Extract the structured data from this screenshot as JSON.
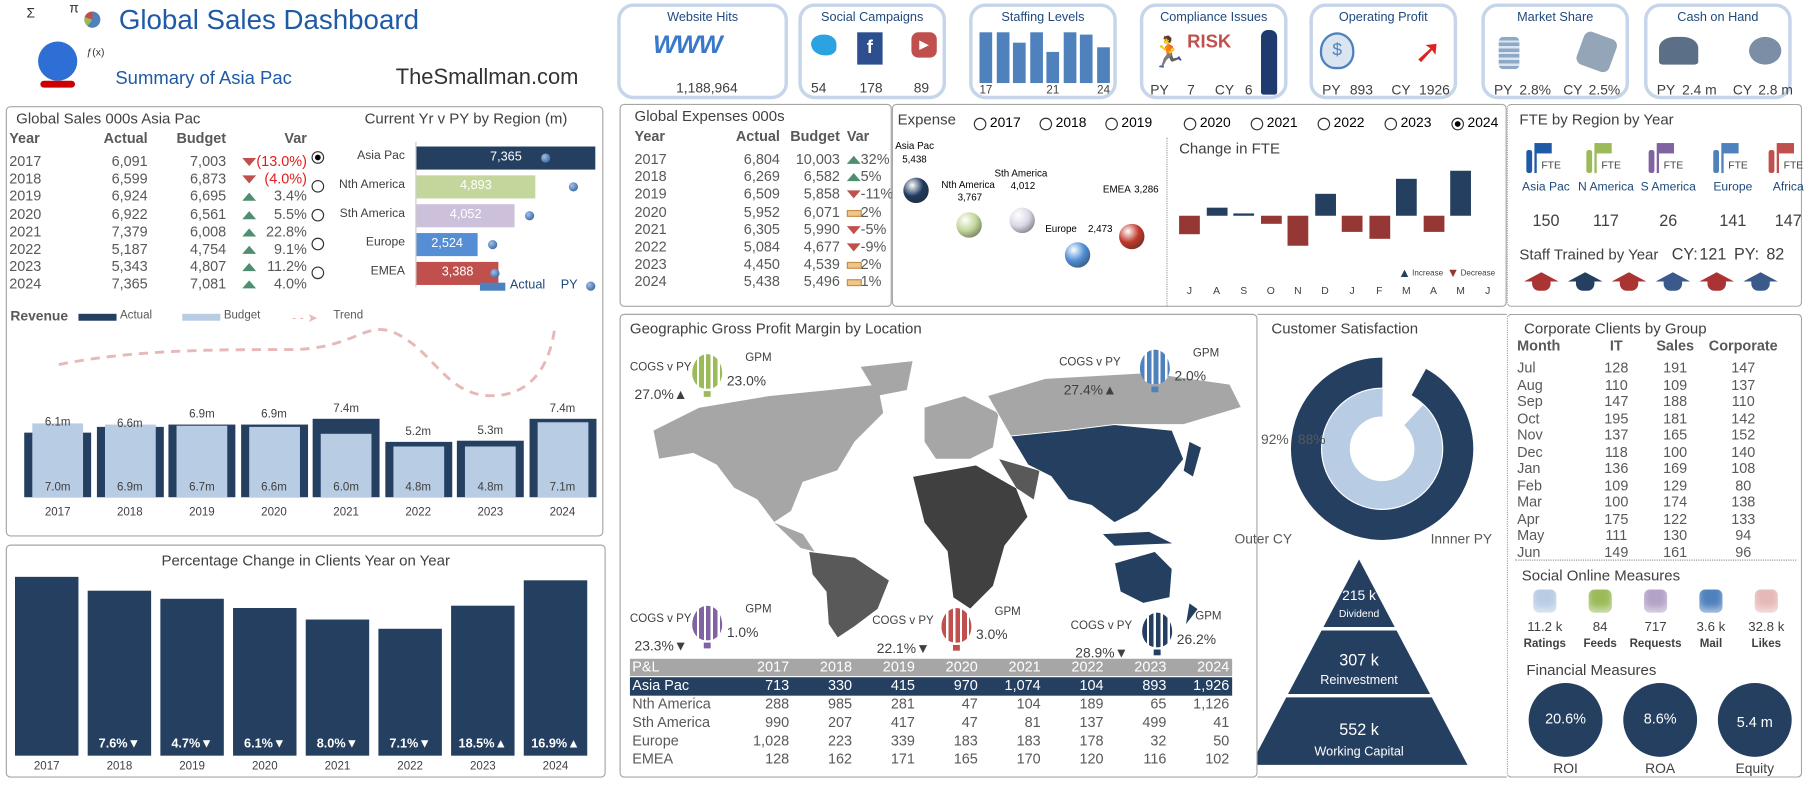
{
  "header": {
    "title": "Global Sales Dashboard",
    "subtitle": "Summary of Asia Pac",
    "brand": "TheSmallman.com",
    "logo_symbols": [
      "Σ",
      "π",
      "ƒ(x)"
    ]
  },
  "colors": {
    "navy": "#243f60",
    "light_blue": "#b8cce4",
    "green": "#9bbb59",
    "red": "#c0504d",
    "purple": "#8064a2",
    "blue": "#4f81bd",
    "title_blue": "#1f5aa6"
  },
  "kpis": {
    "website_hits": {
      "title": "Website Hits",
      "icon": "www-icon",
      "value": "1,188,964"
    },
    "social_campaigns": {
      "title": "Social Campaigns",
      "items": [
        {
          "icon": "twitter-icon",
          "value": "54"
        },
        {
          "icon": "facebook-icon",
          "value": "178"
        },
        {
          "icon": "youtube-icon",
          "value": "89"
        }
      ]
    },
    "staffing_levels": {
      "title": "Staffing Levels",
      "bars": [
        24,
        24,
        19,
        24,
        15,
        24,
        23,
        17
      ],
      "labels": [
        "17",
        "21",
        "24"
      ]
    },
    "compliance_issues": {
      "title": "Compliance Issues",
      "risk_logo": "RISK",
      "py_label": "PY",
      "py": "7",
      "cy_label": "CY",
      "cy": "6"
    },
    "operating_profit": {
      "title": "Operating Profit",
      "py_label": "PY",
      "py": "893",
      "cy_label": "CY",
      "cy": "1926"
    },
    "market_share": {
      "title": "Market Share",
      "py_label": "PY",
      "py": "2.8%",
      "cy_label": "CY",
      "cy": "2.5%"
    },
    "cash_on_hand": {
      "title": "Cash on Hand",
      "py_label": "PY",
      "py": "2.4 m",
      "cy_label": "CY",
      "cy": "2.8 m"
    }
  },
  "global_sales": {
    "title": "Global Sales 000s Asia Pac",
    "columns": [
      "Year",
      "Actual",
      "Budget",
      "Var"
    ],
    "rows": [
      [
        "2017",
        "6,091",
        "7,003",
        "down",
        "(13.0%)"
      ],
      [
        "2018",
        "6,599",
        "6,873",
        "down",
        "(4.0%)"
      ],
      [
        "2019",
        "6,924",
        "6,695",
        "up",
        "3.4%"
      ],
      [
        "2020",
        "6,922",
        "6,561",
        "up",
        "5.5%"
      ],
      [
        "2021",
        "7,379",
        "6,008",
        "up",
        "22.8%"
      ],
      [
        "2022",
        "5,187",
        "4,754",
        "up",
        "9.1%"
      ],
      [
        "2023",
        "5,343",
        "4,807",
        "up",
        "11.2%"
      ],
      [
        "2024",
        "7,365",
        "7,081",
        "up",
        "4.0%"
      ]
    ]
  },
  "region_chart": {
    "title": "Current Yr v PY by Region (m)",
    "type": "bar",
    "selected": "Asia Pac",
    "categories": [
      "Asia Pac",
      "Nth America",
      "Sth America",
      "Europe",
      "EMEA"
    ],
    "actual": [
      7365,
      4893,
      4052,
      2524,
      3388
    ],
    "actual_labels": [
      "7,365",
      "4,893",
      "4,052",
      "2,524",
      "3,388"
    ],
    "py": [
      5300,
      6450,
      4650,
      3150,
      3250
    ],
    "bar_colors": [
      "#243f60",
      "#c3d69b",
      "#ccc0da",
      "#558ed5",
      "#c0504d"
    ],
    "legend": {
      "actual": "Actual",
      "py": "PY"
    }
  },
  "revenue_chart": {
    "type": "bar",
    "title": "Revenue",
    "legend": {
      "actual": "Actual",
      "budget": "Budget",
      "trend": "Trend"
    },
    "categories": [
      "2017",
      "2018",
      "2019",
      "2020",
      "2021",
      "2022",
      "2023",
      "2024"
    ],
    "actual": [
      6.1,
      6.6,
      6.9,
      6.9,
      7.4,
      5.2,
      5.3,
      7.4
    ],
    "budget": [
      7.0,
      6.9,
      6.7,
      6.6,
      6.0,
      4.8,
      4.8,
      7.1
    ],
    "actual_labels": [
      "6.1m",
      "6.6m",
      "6.9m",
      "6.9m",
      "7.4m",
      "5.2m",
      "5.3m",
      "7.4m"
    ],
    "budget_labels": [
      "7.0m",
      "6.9m",
      "6.7m",
      "6.6m",
      "6.0m",
      "4.8m",
      "4.8m",
      "7.1m"
    ]
  },
  "clients_chart": {
    "type": "bar",
    "title": "Percentage Change in Clients Year on Year",
    "categories": [
      "2017",
      "2018",
      "2019",
      "2020",
      "2021",
      "2022",
      "2023",
      "2024"
    ],
    "change_pct": [
      null,
      -7.6,
      -4.7,
      -6.1,
      -8.0,
      -7.1,
      18.5,
      16.9
    ],
    "labels": [
      "",
      "7.6%▼",
      "4.7%▼",
      "6.1%▼",
      "8.0%▼",
      "7.1%▼",
      "18.5%▲",
      "16.9%▲"
    ]
  },
  "global_expenses": {
    "title": "Global Expenses 000s",
    "columns": [
      "Year",
      "Actual",
      "Budget",
      "Var"
    ],
    "rows": [
      [
        "2017",
        "6,804",
        "10,003",
        "up",
        "32%"
      ],
      [
        "2018",
        "6,269",
        "6,582",
        "up",
        "5%"
      ],
      [
        "2019",
        "6,509",
        "5,858",
        "down",
        "-11%"
      ],
      [
        "2020",
        "5,952",
        "6,071",
        "flat",
        "2%"
      ],
      [
        "2021",
        "6,305",
        "5,990",
        "down",
        "-5%"
      ],
      [
        "2022",
        "5,084",
        "4,677",
        "down",
        "-9%"
      ],
      [
        "2023",
        "4,450",
        "4,539",
        "flat",
        "2%"
      ],
      [
        "2024",
        "5,438",
        "5,496",
        "flat",
        "1%"
      ]
    ]
  },
  "expense": {
    "title": "Expense",
    "years": [
      "2017",
      "2018",
      "2019",
      "2020",
      "2021",
      "2022",
      "2023",
      "2024"
    ],
    "selected": "2024",
    "bubbles": [
      {
        "region": "Asia Pac",
        "value": "5,438",
        "color": "#1f3a5f"
      },
      {
        "region": "Nth America",
        "value": "3,767",
        "color": "#c3d69b"
      },
      {
        "region": "Sth America",
        "value": "4,012",
        "color": "#d9d9e6"
      },
      {
        "region": "Europe",
        "value": "2,473",
        "color": "#4f8fd5"
      },
      {
        "region": "EMEA",
        "value": "3,286",
        "color": "#c0392b"
      }
    ]
  },
  "fte_change": {
    "type": "bar",
    "title": "Change in FTE",
    "months": [
      "J",
      "A",
      "S",
      "O",
      "N",
      "D",
      "J",
      "F",
      "M",
      "A",
      "M",
      "J"
    ],
    "values": [
      -2.1,
      0.9,
      0.3,
      -0.9,
      -3.5,
      2.5,
      -1.8,
      -2.6,
      4.3,
      -1.8,
      5.2,
      0
    ],
    "legend": {
      "increase": "Increase",
      "decrease": "Decrease"
    }
  },
  "fte_region": {
    "title": "FTE by Region by Year",
    "icon_label": "FTE",
    "regions": [
      {
        "name": "Asia Pac",
        "value": "150",
        "color": "#1f5aa6"
      },
      {
        "name": "N America",
        "value": "117",
        "color": "#9bbb59"
      },
      {
        "name": "S America",
        "value": "26",
        "color": "#8064a2"
      },
      {
        "name": "Europe",
        "value": "141",
        "color": "#4f81bd"
      },
      {
        "name": "Africa",
        "value": "147",
        "color": "#c0504d"
      }
    ],
    "staff_trained": {
      "label": "Staff Trained by Year",
      "cy_label": "CY:",
      "cy": "121",
      "py_label": "PY:",
      "py": "82",
      "caps": [
        "#a33",
        "#243f60",
        "#a33",
        "#3a5a8c",
        "#a33",
        "#3a5a8c"
      ]
    }
  },
  "geo": {
    "title": "Geographic Gross Profit Margin by Location",
    "balloons": [
      {
        "cogs_label": "COGS v PY",
        "cogs": "27.0%▲",
        "gpm_label": "GPM",
        "gpm": "23.0%",
        "color": "#9bbb59"
      },
      {
        "cogs_label": "COGS v PY",
        "cogs": "27.4%▲",
        "gpm_label": "GPM",
        "gpm": "2.0%",
        "color": "#4f81bd"
      },
      {
        "cogs_label": "COGS v PY",
        "cogs": "23.3%▼",
        "gpm_label": "GPM",
        "gpm": "1.0%",
        "color": "#8064a2"
      },
      {
        "cogs_label": "COGS v PY",
        "cogs": "22.1%▼",
        "gpm_label": "GPM",
        "gpm": "3.0%",
        "color": "#c0504d"
      },
      {
        "cogs_label": "COGS v PY",
        "cogs": "28.9%▼",
        "gpm_label": "GPM",
        "gpm": "26.2%",
        "color": "#243f60"
      }
    ]
  },
  "pnl": {
    "columns": [
      "P&L",
      "2017",
      "2018",
      "2019",
      "2020",
      "2021",
      "2022",
      "2023",
      "2024"
    ],
    "selected": "Asia Pac",
    "rows": [
      [
        "Asia Pac",
        "713",
        "330",
        "415",
        "970",
        "1,074",
        "104",
        "893",
        "1,926"
      ],
      [
        "Nth America",
        "288",
        "985",
        "281",
        "47",
        "104",
        "189",
        "65",
        "1,126"
      ],
      [
        "Sth America",
        "990",
        "207",
        "417",
        "47",
        "81",
        "137",
        "499",
        "41"
      ],
      [
        "Europe",
        "1,028",
        "223",
        "339",
        "183",
        "183",
        "178",
        "32",
        "50"
      ],
      [
        "EMEA",
        "128",
        "162",
        "171",
        "165",
        "170",
        "120",
        "116",
        "102"
      ]
    ]
  },
  "satisfaction": {
    "title": "Customer Satisfaction",
    "outer_pct": 92,
    "inner_pct": 88,
    "outer_label": "92%",
    "inner_label": "88%",
    "outer_caption": "Outer CY",
    "inner_caption": "Innner PY"
  },
  "pyramid": [
    {
      "value": "215 k",
      "label": "Dividend"
    },
    {
      "value": "307 k",
      "label": "Reinvestment"
    },
    {
      "value": "552 k",
      "label": "Working Capital"
    }
  ],
  "corporate_clients": {
    "title": "Corporate Clients by Group",
    "columns": [
      "Month",
      "IT",
      "Sales",
      "Corporate"
    ],
    "rows": [
      [
        "Jul",
        "128",
        "191",
        "147"
      ],
      [
        "Aug",
        "110",
        "109",
        "137"
      ],
      [
        "Sep",
        "147",
        "188",
        "110"
      ],
      [
        "Oct",
        "195",
        "181",
        "142"
      ],
      [
        "Nov",
        "137",
        "165",
        "152"
      ],
      [
        "Dec",
        "118",
        "100",
        "140"
      ],
      [
        "Jan",
        "136",
        "169",
        "108"
      ],
      [
        "Feb",
        "109",
        "129",
        "80"
      ],
      [
        "Mar",
        "100",
        "174",
        "138"
      ],
      [
        "Apr",
        "175",
        "122",
        "133"
      ],
      [
        "May",
        "111",
        "130",
        "94"
      ],
      [
        "Jun",
        "149",
        "161",
        "96"
      ]
    ]
  },
  "social": {
    "title": "Social Online Measures",
    "items": [
      {
        "value": "11.2 k",
        "label": "Ratings",
        "color": "#b8cce4"
      },
      {
        "value": "84",
        "label": "Feeds",
        "color": "#9bbb59"
      },
      {
        "value": "717",
        "label": "Requests",
        "color": "#b3a2c7"
      },
      {
        "value": "3.6 k",
        "label": "Mail",
        "color": "#4f81bd"
      },
      {
        "value": "32.8 k",
        "label": "Likes",
        "color": "#e6b9b8"
      }
    ]
  },
  "financial": {
    "title": "Financial Measures",
    "items": [
      {
        "value": "20.6%",
        "label": "ROI"
      },
      {
        "value": "8.6%",
        "label": "ROA"
      },
      {
        "value": "5.4 m",
        "label": "Equity"
      }
    ]
  }
}
